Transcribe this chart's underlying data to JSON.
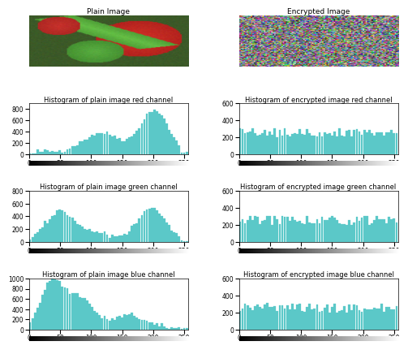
{
  "title_plain": "Plain Image",
  "title_encrypted": "Encrypted Image",
  "hist_titles": [
    [
      "Histogram of plain image red channel",
      "Histogram of encrypted image red channel"
    ],
    [
      "Histogram of plain image green channel",
      "Histogram of encrypted image green channel"
    ],
    [
      "Histogram of plain image blue channel",
      "Histogram of encrypted image blue channel"
    ]
  ],
  "bar_color": "#5BC8C8",
  "xlim": [
    0,
    256
  ],
  "xticks": [
    0,
    50,
    100,
    150,
    200,
    250
  ],
  "plain_ylims": [
    900,
    800,
    1000
  ],
  "enc_ylim": 600,
  "plain_yticks": [
    [
      0,
      200,
      400,
      600,
      800
    ],
    [
      0,
      200,
      400,
      600,
      800
    ],
    [
      0,
      200,
      400,
      600,
      800,
      1000
    ]
  ],
  "enc_yticks": [
    0,
    200,
    400,
    600
  ],
  "title_fontsize": 6.5,
  "axis_fontsize": 5.5,
  "bg_color": "#ffffff"
}
